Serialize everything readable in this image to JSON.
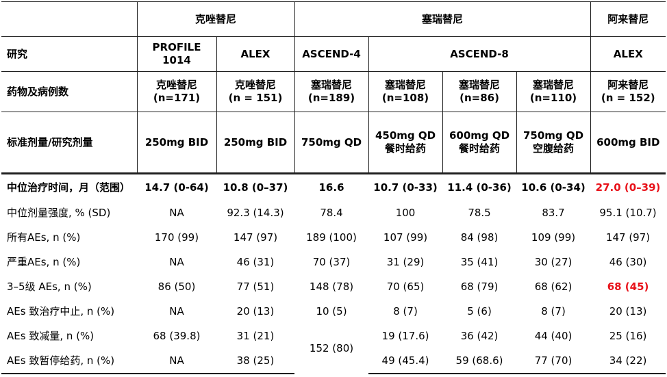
{
  "groups": {
    "crizotinib": "克唑替尼",
    "ceritinib": "塞瑞替尼",
    "alectinib": "阿来替尼"
  },
  "row_labels": {
    "study": "研究",
    "drug": "药物及病例数",
    "dose": "标准剂量/研究剂量"
  },
  "columns": [
    {
      "study_l1": "PROFILE",
      "study_l2": "1014",
      "drug_l1": "克唑替尼",
      "drug_l2": "(n=171)",
      "dose_l1": "250mg BID",
      "dose_l2": ""
    },
    {
      "study_l1": "ALEX",
      "study_l2": "",
      "drug_l1": "克唑替尼",
      "drug_l2": "(n = 151)",
      "dose_l1": "250mg BID",
      "dose_l2": ""
    },
    {
      "study_l1": "ASCEND-4",
      "study_l2": "",
      "drug_l1": "塞瑞替尼",
      "drug_l2": "(n=189)",
      "dose_l1": "750mg QD",
      "dose_l2": ""
    },
    {
      "study_l1": "ASCEND-8",
      "study_l2": "",
      "drug_l1": "塞瑞替尼",
      "drug_l2": "(n=108)",
      "dose_l1": "450mg QD",
      "dose_l2": "餐时给药"
    },
    {
      "study_l1": "",
      "study_l2": "",
      "drug_l1": "塞瑞替尼",
      "drug_l2": "(n=86)",
      "dose_l1": "600mg QD",
      "dose_l2": "餐时给药"
    },
    {
      "study_l1": "",
      "study_l2": "",
      "drug_l1": "塞瑞替尼",
      "drug_l2": "(n=110)",
      "dose_l1": "750mg QD",
      "dose_l2": "空腹给药"
    },
    {
      "study_l1": "ALEX",
      "study_l2": "",
      "drug_l1": "阿来替尼",
      "drug_l2": "(n = 152)",
      "dose_l1": "600mg BID",
      "dose_l2": ""
    }
  ],
  "rows": [
    {
      "label": "中位治疗时间，月（范围）",
      "values": [
        "14.7 (0-64)",
        "10.8 (0–37)",
        "16.6",
        "10.7 (0-33)",
        "11.4 (0-36)",
        "10.6 (0-34)",
        "27.0 (0–39)"
      ]
    },
    {
      "label": "中位剂量强度, % (SD)",
      "values": [
        "NA",
        "92.3 (14.3)",
        "78.4",
        "100",
        "78.5",
        "83.7",
        "95.1 (10.7)"
      ]
    },
    {
      "label": "所有AEs, n (%)",
      "values": [
        "170 (99)",
        "147 (97)",
        "189 (100)",
        "107 (99)",
        "84 (98)",
        "109 (99)",
        "147 (97)"
      ]
    },
    {
      "label": "严重AEs, n (%)",
      "values": [
        "NA",
        "46 (31)",
        "70 (37)",
        "31 (29)",
        "35 (41)",
        "30 (27)",
        "46 (30)"
      ]
    },
    {
      "label": "3–5级 AEs, n (%)",
      "values": [
        "86 (50)",
        "77 (51)",
        "148 (78)",
        "70 (65)",
        "68 (79)",
        "68 (62)",
        "68 (45)"
      ]
    },
    {
      "label": "AEs 致治疗中止, n (%)",
      "values": [
        "NA",
        "20 (13)",
        "10 (5)",
        "8 (7)",
        "5 (6)",
        "8 (7)",
        "20 (13)"
      ]
    },
    {
      "label": "AEs 致减量, n (%)",
      "values": [
        "68 (39.8)",
        "31 (21)",
        "152 (80)",
        "19 (17.6)",
        "36 (42)",
        "44 (40)",
        "25 (16)"
      ]
    },
    {
      "label": "AEs 致暂停给药, n (%)",
      "values": [
        "NA",
        "38 (25)",
        "",
        "49 (45.4)",
        "59 (68.6)",
        "77 (70)",
        "34 (22)"
      ]
    }
  ],
  "colors": {
    "highlight": "#e8121a",
    "rule": "#1f1f1f"
  }
}
